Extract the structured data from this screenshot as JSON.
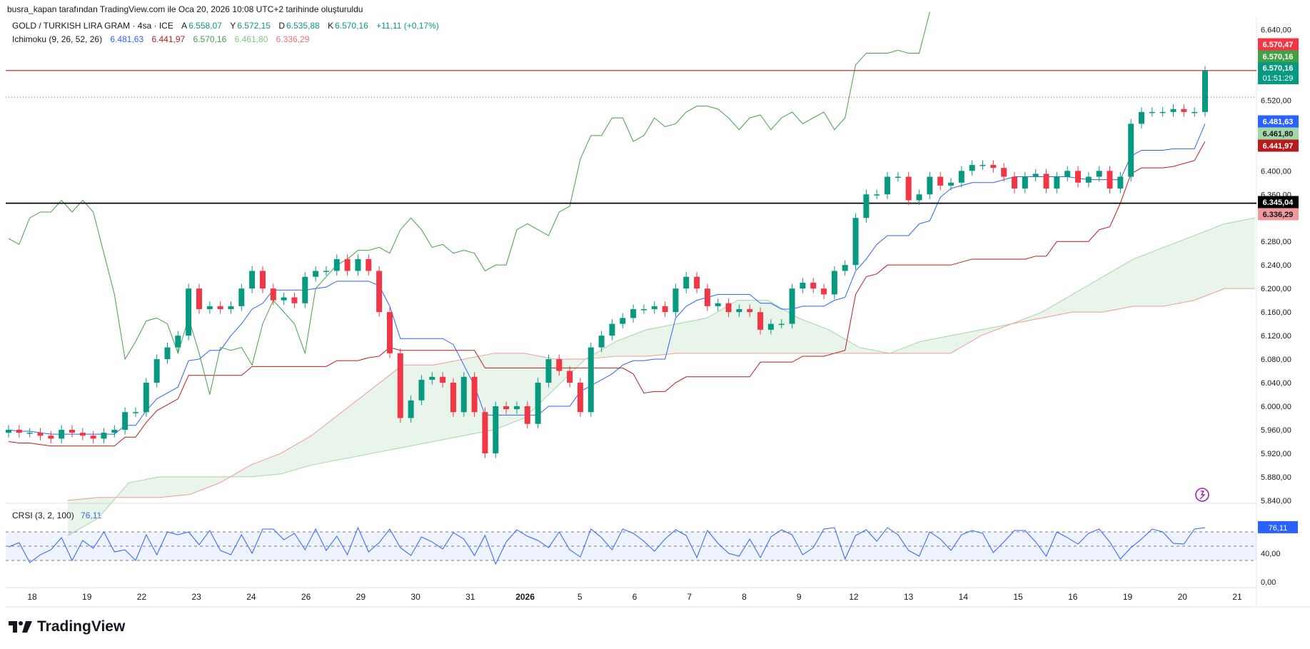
{
  "header": {
    "caption": "busra_kapan tarafından TradingView.com ile Oca 20, 2026 10:08 UTC+2 tarihinde oluşturuldu"
  },
  "legend": {
    "symbol": "GOLD / TURKISH LIRA GRAM · 4sa · ICE",
    "a_label": "A",
    "a_value": "6.558,07",
    "y_label": "Y",
    "y_value": "6.572,15",
    "d_label": "D",
    "d_value": "6.535,88",
    "k_label": "K",
    "k_value": "6.570,16",
    "change": "+11,11 (+0,17%)",
    "ichimoku_label": "Ichimoku (9, 26, 52, 26)",
    "ichimoku_values": [
      "6.481,63",
      "6.441,97",
      "6.570,16",
      "6.461,80",
      "6.336,29"
    ]
  },
  "rsi_legend": {
    "label": "CRSI (3, 2, 100)",
    "value": "76,11"
  },
  "brand": "TradingView",
  "colors": {
    "up": "#089981",
    "down": "#f23645",
    "conversion": "#2962ff",
    "base": "#b71c1c",
    "lagging": "#43a047",
    "spanA": "#a5d6a7",
    "spanB": "#ef9a9a",
    "rsi": "#2962ff"
  },
  "chart_data": {
    "type": "candlestick",
    "price_axis": {
      "ticks": [
        "6.640,00",
        "6.520,00",
        "6.400,00",
        "6.360,00",
        "6.280,00",
        "6.240,00",
        "6.200,00",
        "6.160,00",
        "6.120,00",
        "6.080,00",
        "6.040,00",
        "6.000,00",
        "5.960,00",
        "5.920,00",
        "5.880,00",
        "5.840,00"
      ],
      "min": 5.835,
      "max": 6.66
    },
    "x_axis": {
      "labels": [
        "18",
        "19",
        "22",
        "23",
        "24",
        "26",
        "29",
        "30",
        "31",
        "2026",
        "5",
        "6",
        "7",
        "8",
        "9",
        "12",
        "13",
        "14",
        "15",
        "16",
        "19",
        "20",
        "21"
      ]
    },
    "closes": [
      5.96,
      5.955,
      5.955,
      5.95,
      5.945,
      5.96,
      5.955,
      5.95,
      5.945,
      5.955,
      5.96,
      5.99,
      5.99,
      6.04,
      6.08,
      6.1,
      6.12,
      6.2,
      6.165,
      6.17,
      6.165,
      6.17,
      6.2,
      6.23,
      6.2,
      6.18,
      6.185,
      6.175,
      6.22,
      6.23,
      6.23,
      6.25,
      6.23,
      6.25,
      6.23,
      6.16,
      6.09,
      5.98,
      6.01,
      6.045,
      6.05,
      6.04,
      5.99,
      6.05,
      5.99,
      5.92,
      6.0,
      5.995,
      6.0,
      5.97,
      6.04,
      6.08,
      6.06,
      6.04,
      5.99,
      6.1,
      6.12,
      6.14,
      6.15,
      6.165,
      6.165,
      6.17,
      6.16,
      6.2,
      6.22,
      6.2,
      6.17,
      6.175,
      6.16,
      6.165,
      6.16,
      6.13,
      6.14,
      6.14,
      6.2,
      6.21,
      6.2,
      6.19,
      6.23,
      6.24,
      6.32,
      6.36,
      6.36,
      6.39,
      6.39,
      6.35,
      6.36,
      6.39,
      6.375,
      6.38,
      6.4,
      6.41,
      6.41,
      6.405,
      6.39,
      6.37,
      6.39,
      6.395,
      6.37,
      6.39,
      6.4,
      6.38,
      6.39,
      6.4,
      6.37,
      6.39,
      6.48,
      6.5,
      6.5,
      6.5,
      6.505,
      6.5,
      6.5,
      6.57
    ],
    "span_a_visible": [
      5.78,
      5.81,
      5.87,
      5.88,
      5.88,
      5.88,
      5.88,
      5.885,
      5.9,
      5.91,
      5.92,
      5.93,
      5.94,
      5.95,
      5.96,
      5.98,
      6.03,
      6.08,
      6.11,
      6.13,
      6.14,
      6.15,
      6.18,
      6.18,
      6.15,
      6.13,
      6.1,
      6.09,
      6.11,
      6.12,
      6.13,
      6.14,
      6.16,
      6.19,
      6.22,
      6.25,
      6.27,
      6.29,
      6.31,
      6.32
    ],
    "span_b_visible": [
      5.84,
      5.845,
      5.845,
      5.845,
      5.85,
      5.87,
      5.9,
      5.92,
      5.95,
      5.99,
      6.03,
      6.07,
      6.07,
      6.08,
      6.09,
      6.09,
      6.08,
      6.08,
      6.085,
      6.085,
      6.09,
      6.09,
      6.09,
      6.09,
      6.09,
      6.09,
      6.09,
      6.09,
      6.09,
      6.09,
      6.12,
      6.14,
      6.15,
      6.16,
      6.16,
      6.17,
      6.17,
      6.18,
      6.2,
      6.2
    ],
    "crsi": [
      49,
      55,
      27,
      38,
      45,
      62,
      30,
      58,
      47,
      70,
      42,
      45,
      30,
      66,
      38,
      70,
      66,
      70,
      52,
      72,
      44,
      38,
      66,
      40,
      74,
      74,
      59,
      68,
      45,
      74,
      44,
      64,
      38,
      76,
      42,
      55,
      74,
      48,
      37,
      63,
      56,
      46,
      69,
      60,
      37,
      65,
      25,
      56,
      73,
      64,
      58,
      48,
      70,
      45,
      35,
      74,
      62,
      45,
      74,
      68,
      57,
      43,
      60,
      73,
      65,
      34,
      72,
      54,
      40,
      36,
      60,
      34,
      63,
      73,
      66,
      38,
      48,
      74,
      76,
      32,
      65,
      73,
      57,
      76,
      66,
      44,
      36,
      70,
      60,
      44,
      66,
      72,
      68,
      41,
      56,
      72,
      72,
      56,
      36,
      70,
      62,
      53,
      68,
      74,
      56,
      32,
      48,
      60,
      74,
      70,
      54,
      53,
      74,
      76
    ],
    "title": "GOLD / TURKISH LIRA GRAM · 4sa · ICE"
  },
  "price_labels": {
    "high_line": "6.570,47",
    "lagging": "6.570,16",
    "last_price": "6.570,16",
    "countdown": "01:51:29",
    "conversion": "6.481,63",
    "span_a": "6.461,80",
    "base": "6.441,97",
    "support": "6.345,04",
    "span_b": "6.336,29"
  },
  "rsi_axis": {
    "ticks": [
      "76,11",
      "40,00",
      "0,00"
    ]
  }
}
